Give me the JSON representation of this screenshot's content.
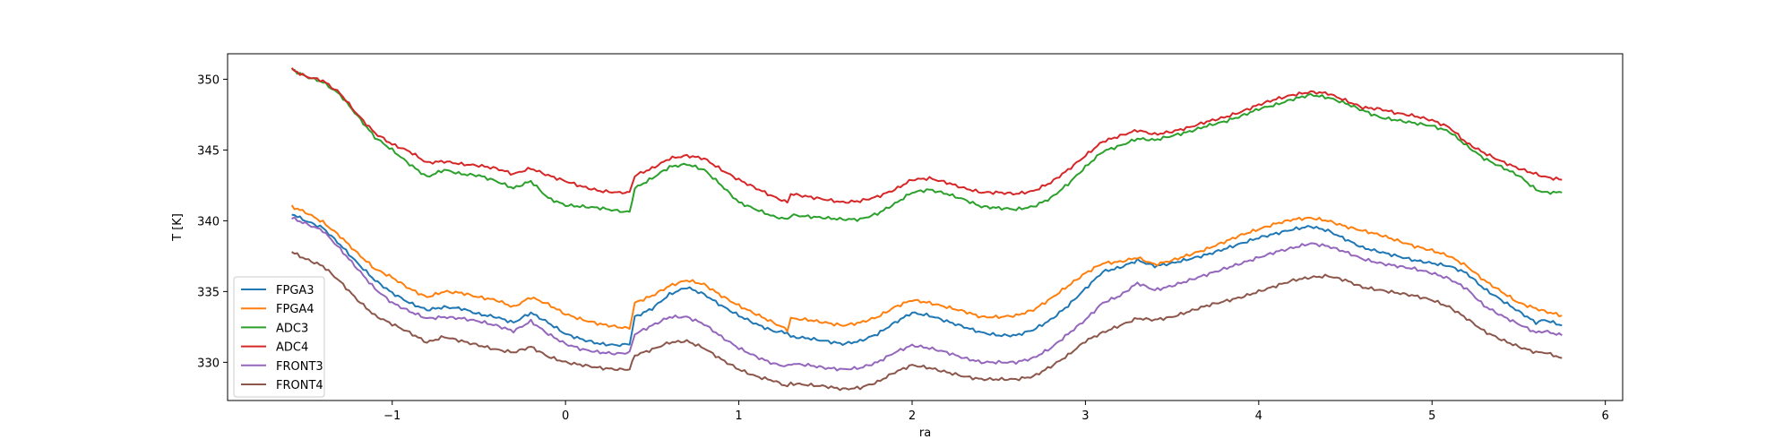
{
  "chart_data": {
    "type": "line",
    "title": "",
    "xlabel": "ra",
    "ylabel": "T [K]",
    "xlim": [
      -1.95,
      6.1
    ],
    "ylim": [
      327.3,
      351.8
    ],
    "xticks": [
      -1,
      0,
      1,
      2,
      3,
      4,
      5,
      6
    ],
    "yticks": [
      330,
      335,
      340,
      345,
      350
    ],
    "grid": false,
    "legend_position": "lower-left",
    "x": [
      -1.58,
      -1.5,
      -1.4,
      -1.3,
      -1.2,
      -1.1,
      -1.0,
      -0.9,
      -0.8,
      -0.7,
      -0.6,
      -0.5,
      -0.4,
      -0.3,
      -0.2,
      -0.1,
      0.0,
      0.1,
      0.2,
      0.3,
      0.37,
      0.4,
      0.5,
      0.6,
      0.7,
      0.8,
      0.9,
      1.0,
      1.1,
      1.2,
      1.28,
      1.3,
      1.4,
      1.5,
      1.6,
      1.7,
      1.8,
      1.9,
      2.0,
      2.1,
      2.2,
      2.3,
      2.4,
      2.5,
      2.6,
      2.7,
      2.8,
      2.9,
      3.0,
      3.1,
      3.2,
      3.3,
      3.4,
      3.5,
      3.6,
      3.7,
      3.8,
      3.9,
      4.0,
      4.1,
      4.2,
      4.3,
      4.4,
      4.5,
      4.6,
      4.7,
      4.8,
      4.9,
      5.0,
      5.1,
      5.2,
      5.3,
      5.4,
      5.5,
      5.6,
      5.65,
      5.75
    ],
    "series": [
      {
        "name": "FPGA3",
        "color": "#1f77b4",
        "values": [
          340.5,
          340.0,
          339.5,
          338.3,
          337.0,
          335.8,
          334.9,
          334.2,
          333.7,
          333.9,
          333.8,
          333.4,
          333.2,
          332.8,
          333.5,
          332.8,
          332.0,
          331.6,
          331.3,
          331.2,
          331.3,
          333.2,
          333.8,
          334.8,
          335.3,
          334.8,
          334.0,
          333.3,
          332.7,
          332.2,
          332.1,
          331.8,
          331.7,
          331.5,
          331.3,
          331.5,
          332.0,
          332.8,
          333.5,
          333.3,
          332.9,
          332.5,
          332.1,
          331.9,
          331.9,
          332.3,
          333.0,
          334.0,
          335.2,
          336.4,
          336.7,
          337.2,
          336.8,
          337.0,
          337.3,
          337.6,
          338.0,
          338.4,
          338.8,
          339.1,
          339.4,
          339.6,
          339.3,
          338.7,
          338.1,
          337.8,
          337.5,
          337.2,
          337.0,
          336.8,
          336.3,
          335.2,
          334.4,
          333.6,
          332.8,
          333.0,
          332.6
        ]
      },
      {
        "name": "FPGA4",
        "color": "#ff7f0e",
        "values": [
          341.0,
          340.6,
          339.9,
          338.9,
          337.7,
          336.6,
          336.0,
          335.2,
          334.6,
          335.0,
          334.9,
          334.6,
          334.4,
          333.9,
          334.6,
          334.1,
          333.4,
          333.0,
          332.7,
          332.5,
          332.4,
          334.2,
          334.7,
          335.4,
          335.8,
          335.5,
          334.7,
          334.0,
          333.4,
          332.8,
          332.3,
          333.1,
          333.0,
          332.8,
          332.6,
          332.8,
          333.2,
          333.9,
          334.4,
          334.2,
          333.9,
          333.6,
          333.2,
          333.2,
          333.3,
          333.7,
          334.5,
          335.4,
          336.3,
          337.0,
          337.1,
          337.4,
          336.9,
          337.2,
          337.6,
          338.0,
          338.5,
          339.0,
          339.4,
          339.8,
          340.1,
          340.2,
          340.0,
          339.6,
          339.3,
          339.0,
          338.6,
          338.2,
          337.9,
          337.5,
          336.8,
          335.8,
          335.0,
          334.2,
          333.8,
          333.6,
          333.3
        ]
      },
      {
        "name": "ADC3",
        "color": "#2ca02c",
        "values": [
          350.7,
          350.2,
          349.8,
          348.9,
          347.4,
          345.9,
          345.0,
          344.0,
          343.1,
          343.6,
          343.3,
          343.2,
          342.8,
          342.3,
          342.8,
          341.6,
          341.1,
          341.0,
          340.9,
          340.7,
          340.6,
          342.3,
          343.0,
          343.8,
          344.0,
          343.6,
          342.5,
          341.3,
          340.8,
          340.3,
          340.1,
          340.4,
          340.3,
          340.2,
          340.1,
          340.1,
          340.5,
          341.2,
          342.0,
          342.2,
          341.9,
          341.5,
          341.0,
          340.9,
          340.8,
          341.0,
          341.6,
          342.6,
          343.8,
          344.9,
          345.3,
          345.8,
          345.7,
          346.0,
          346.3,
          346.7,
          347.0,
          347.4,
          347.9,
          348.2,
          348.6,
          348.9,
          348.7,
          348.3,
          347.8,
          347.3,
          347.1,
          346.9,
          346.7,
          346.3,
          345.3,
          344.4,
          343.8,
          343.2,
          342.2,
          342.0,
          342.0
        ]
      },
      {
        "name": "ADC4",
        "color": "#d62728",
        "values": [
          350.7,
          350.2,
          349.9,
          349.0,
          347.5,
          346.2,
          345.4,
          344.9,
          344.1,
          344.2,
          344.0,
          343.9,
          343.7,
          343.3,
          343.7,
          343.2,
          342.8,
          342.4,
          342.1,
          342.0,
          342.0,
          343.2,
          343.7,
          344.4,
          344.6,
          344.4,
          343.6,
          342.9,
          342.3,
          341.7,
          341.3,
          341.9,
          341.7,
          341.5,
          341.3,
          341.4,
          341.7,
          342.2,
          342.9,
          343.0,
          342.7,
          342.3,
          342.0,
          342.0,
          341.9,
          342.1,
          342.7,
          343.6,
          344.6,
          345.6,
          346.0,
          346.4,
          346.1,
          346.3,
          346.6,
          347.0,
          347.3,
          347.7,
          348.2,
          348.6,
          348.9,
          349.1,
          349.0,
          348.5,
          348.0,
          347.9,
          347.6,
          347.4,
          347.1,
          346.6,
          345.5,
          344.8,
          344.2,
          343.7,
          343.3,
          343.1,
          342.9
        ]
      },
      {
        "name": "FRONT3",
        "color": "#9467bd",
        "values": [
          340.2,
          339.8,
          339.3,
          338.0,
          336.6,
          335.2,
          334.2,
          333.6,
          333.1,
          333.2,
          333.1,
          332.9,
          332.6,
          332.2,
          332.9,
          332.0,
          331.3,
          330.9,
          330.7,
          330.6,
          330.7,
          332.0,
          332.6,
          333.2,
          333.2,
          332.7,
          331.8,
          331.0,
          330.4,
          329.9,
          329.7,
          329.9,
          329.8,
          329.6,
          329.5,
          329.6,
          330.0,
          330.7,
          331.2,
          331.0,
          330.7,
          330.3,
          330.0,
          330.0,
          330.0,
          330.3,
          331.0,
          332.0,
          333.0,
          334.2,
          334.7,
          335.6,
          335.1,
          335.4,
          335.8,
          336.2,
          336.6,
          337.0,
          337.4,
          337.8,
          338.1,
          338.4,
          338.2,
          337.8,
          337.3,
          337.0,
          336.8,
          336.6,
          336.3,
          335.9,
          335.2,
          334.0,
          333.3,
          332.7,
          332.1,
          332.2,
          331.9
        ]
      },
      {
        "name": "FRONT4",
        "color": "#8c564b",
        "values": [
          337.8,
          337.3,
          336.8,
          335.7,
          334.4,
          333.3,
          332.7,
          332.1,
          331.4,
          331.8,
          331.5,
          331.2,
          330.9,
          330.7,
          331.1,
          330.4,
          330.0,
          329.8,
          329.6,
          329.5,
          329.5,
          330.5,
          330.9,
          331.4,
          331.5,
          331.0,
          330.2,
          329.5,
          329.0,
          328.7,
          328.3,
          328.5,
          328.4,
          328.3,
          328.1,
          328.2,
          328.6,
          329.3,
          329.8,
          329.6,
          329.3,
          329.0,
          328.8,
          328.8,
          328.8,
          329.0,
          329.7,
          330.5,
          331.5,
          332.1,
          332.6,
          333.1,
          333.0,
          333.2,
          333.6,
          334.0,
          334.3,
          334.6,
          335.0,
          335.4,
          335.8,
          336.0,
          336.1,
          335.8,
          335.3,
          335.1,
          334.9,
          334.7,
          334.4,
          333.9,
          333.1,
          332.2,
          331.6,
          331.1,
          330.7,
          330.7,
          330.3
        ]
      }
    ]
  }
}
